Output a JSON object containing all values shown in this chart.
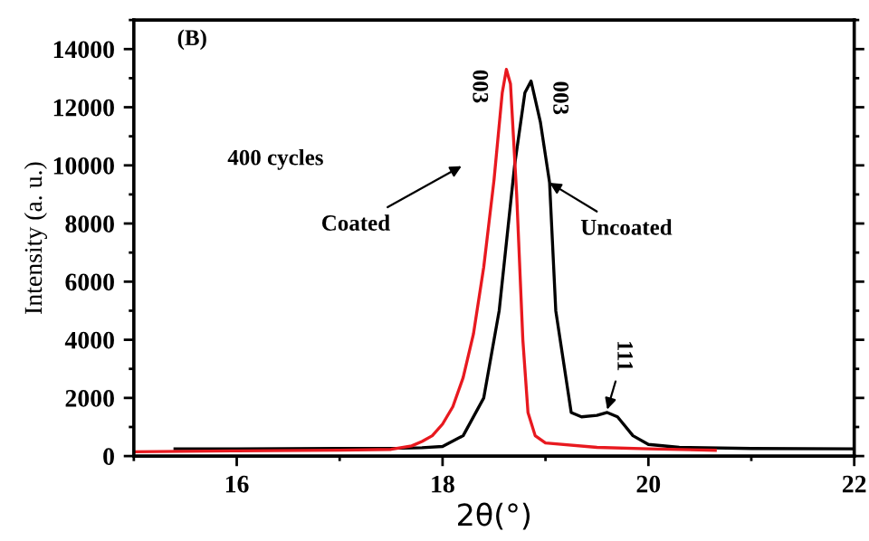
{
  "chart_data": {
    "type": "line",
    "xlabel": "2θ(°)",
    "ylabel": "Intensity (a. u.)",
    "xlim": [
      15,
      22
    ],
    "xticks": [
      16,
      18,
      20,
      22
    ],
    "ylim": [
      0,
      15000
    ],
    "yticks": [
      0,
      2000,
      4000,
      6000,
      8000,
      10000,
      12000,
      14000
    ],
    "grid": false,
    "legend": false,
    "marker": "none",
    "line_style": "solid",
    "series": [
      {
        "color": "#000000",
        "x": [
          15.4,
          16,
          17,
          17.6,
          17.8,
          18.0,
          18.2,
          18.4,
          18.55,
          18.7,
          18.8,
          18.86,
          18.95,
          19.04,
          19.1,
          19.25,
          19.35,
          19.5,
          19.6,
          19.7,
          19.85,
          20.0,
          20.3,
          21,
          22
        ],
        "values": [
          250,
          250,
          260,
          270,
          290,
          330,
          700,
          2000,
          5000,
          10000,
          12500,
          12900,
          11500,
          9400,
          5000,
          1500,
          1350,
          1400,
          1500,
          1350,
          700,
          400,
          300,
          260,
          250
        ]
      },
      {
        "color": "#e8191f",
        "x": [
          15,
          16,
          17,
          17.5,
          17.7,
          17.8,
          17.9,
          18.0,
          18.1,
          18.2,
          18.3,
          18.4,
          18.5,
          18.58,
          18.62,
          18.66,
          18.72,
          18.78,
          18.83,
          18.9,
          19.0,
          19.5,
          20,
          20.65
        ],
        "values": [
          150,
          180,
          200,
          230,
          350,
          500,
          700,
          1100,
          1700,
          2700,
          4200,
          6500,
          9500,
          12500,
          13300,
          12800,
          9000,
          4000,
          1500,
          700,
          450,
          300,
          250,
          200
        ]
      }
    ],
    "annotations": [
      "(B)",
      "400 cycles",
      "Coated",
      {
        "text": "Uncoated",
        "x": 19.04,
        "y": 9400
      },
      {
        "text": "003",
        "x": 18.62,
        "y": 13300
      },
      {
        "text": "003",
        "x": 18.86,
        "y": 12900
      },
      {
        "text": "111",
        "x": 19.6,
        "y": 1600
      }
    ]
  }
}
